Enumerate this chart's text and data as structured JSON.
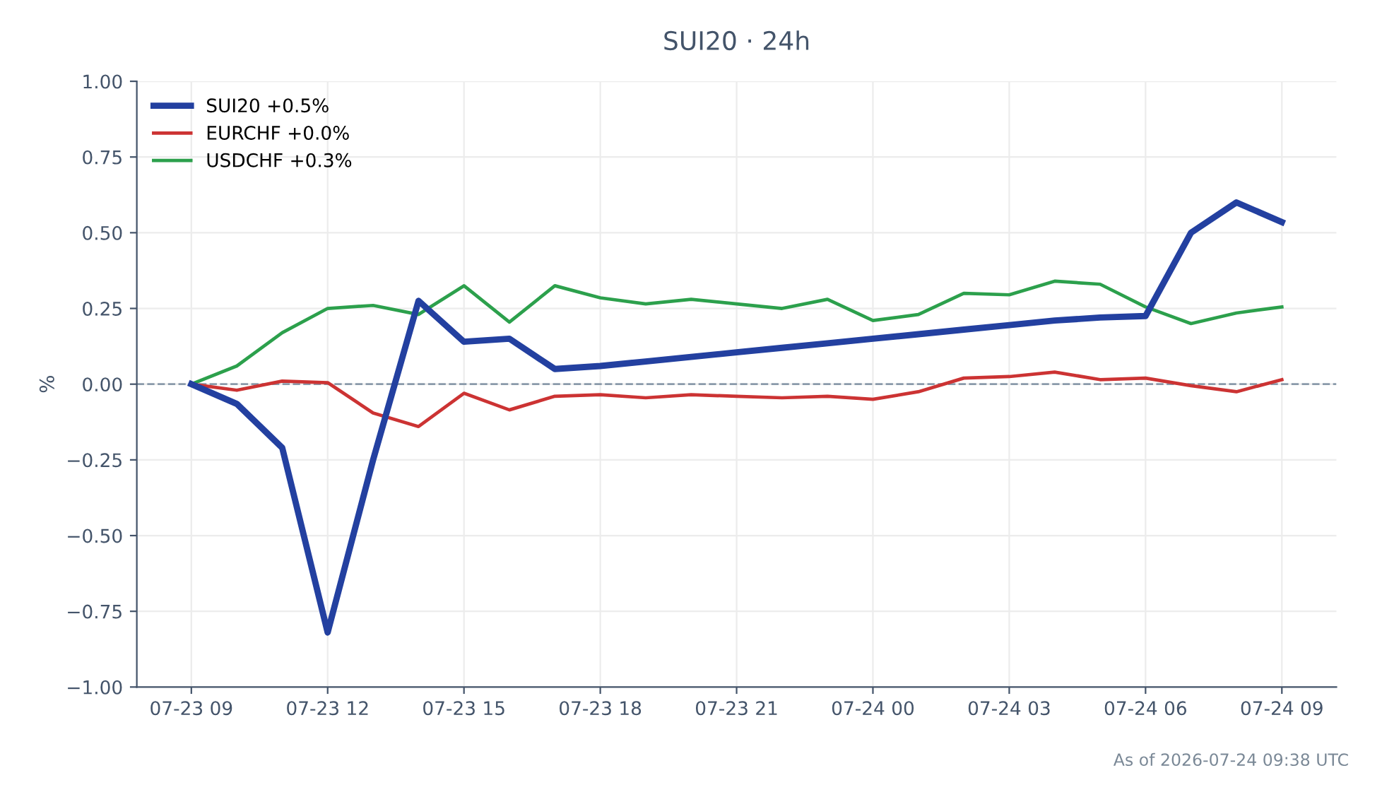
{
  "chart_data": {
    "type": "line",
    "title": "SUI20 · 24h",
    "ylabel": "%",
    "categories": [
      "07-23 09",
      null,
      null,
      "07-23 12",
      null,
      null,
      "07-23 15",
      null,
      null,
      "07-23 18",
      null,
      null,
      "07-23 21",
      null,
      null,
      "07-24 00",
      null,
      null,
      "07-24 03",
      null,
      null,
      "07-24 06",
      null,
      null,
      "07-24 09"
    ],
    "series": [
      {
        "name": "SUI20 +0.5%",
        "color": "#2340a0",
        "values": [
          0,
          -0.065,
          -0.21,
          -0.82,
          -0.25,
          0.275,
          0.14,
          0.15,
          0.05,
          0.06,
          0.075,
          0.09,
          0.105,
          0.12,
          0.135,
          0.15,
          0.165,
          0.18,
          0.195,
          0.21,
          0.22,
          0.225,
          0.5,
          0.6,
          0.535
        ]
      },
      {
        "name": "EURCHF +0.0%",
        "color": "#cc3333",
        "values": [
          0,
          -0.02,
          0.01,
          0.005,
          -0.095,
          -0.14,
          -0.03,
          -0.085,
          -0.04,
          -0.035,
          -0.045,
          -0.035,
          -0.04,
          -0.045,
          -0.04,
          -0.05,
          -0.025,
          0.02,
          0.025,
          0.04,
          0.015,
          0.02,
          -0.005,
          -0.025,
          0.015
        ]
      },
      {
        "name": "USDCHF +0.3%",
        "color": "#2ca04c",
        "values": [
          0,
          0.06,
          0.17,
          0.25,
          0.26,
          0.23,
          0.325,
          0.205,
          0.325,
          0.285,
          0.265,
          0.28,
          0.265,
          0.25,
          0.28,
          0.21,
          0.23,
          0.3,
          0.295,
          0.34,
          0.33,
          0.255,
          0.2,
          0.235,
          0.255
        ]
      }
    ],
    "ylim": [
      -1.0,
      1.0
    ],
    "yticks": [
      {
        "value": -1,
        "label": "−1.00"
      },
      {
        "value": -0.75,
        "label": "−0.75"
      },
      {
        "value": -0.5,
        "label": "−0.50"
      },
      {
        "value": -0.25,
        "label": "−0.25"
      },
      {
        "value": 0,
        "label": "0.00"
      },
      {
        "value": 0.25,
        "label": "0.25"
      },
      {
        "value": 0.5,
        "label": "0.50"
      },
      {
        "value": 0.75,
        "label": "0.75"
      },
      {
        "value": 1,
        "label": "1.00"
      }
    ],
    "ref_lines": [
      {
        "axis": "y",
        "value": 0,
        "label": null,
        "color": "#8a9aaa",
        "line_style": "dashed"
      }
    ],
    "grid": true,
    "legend": "top left",
    "marker": "none",
    "line_style": "solid",
    "annotations": [
      "As of 2026-07-24 09:38 UTC"
    ]
  }
}
